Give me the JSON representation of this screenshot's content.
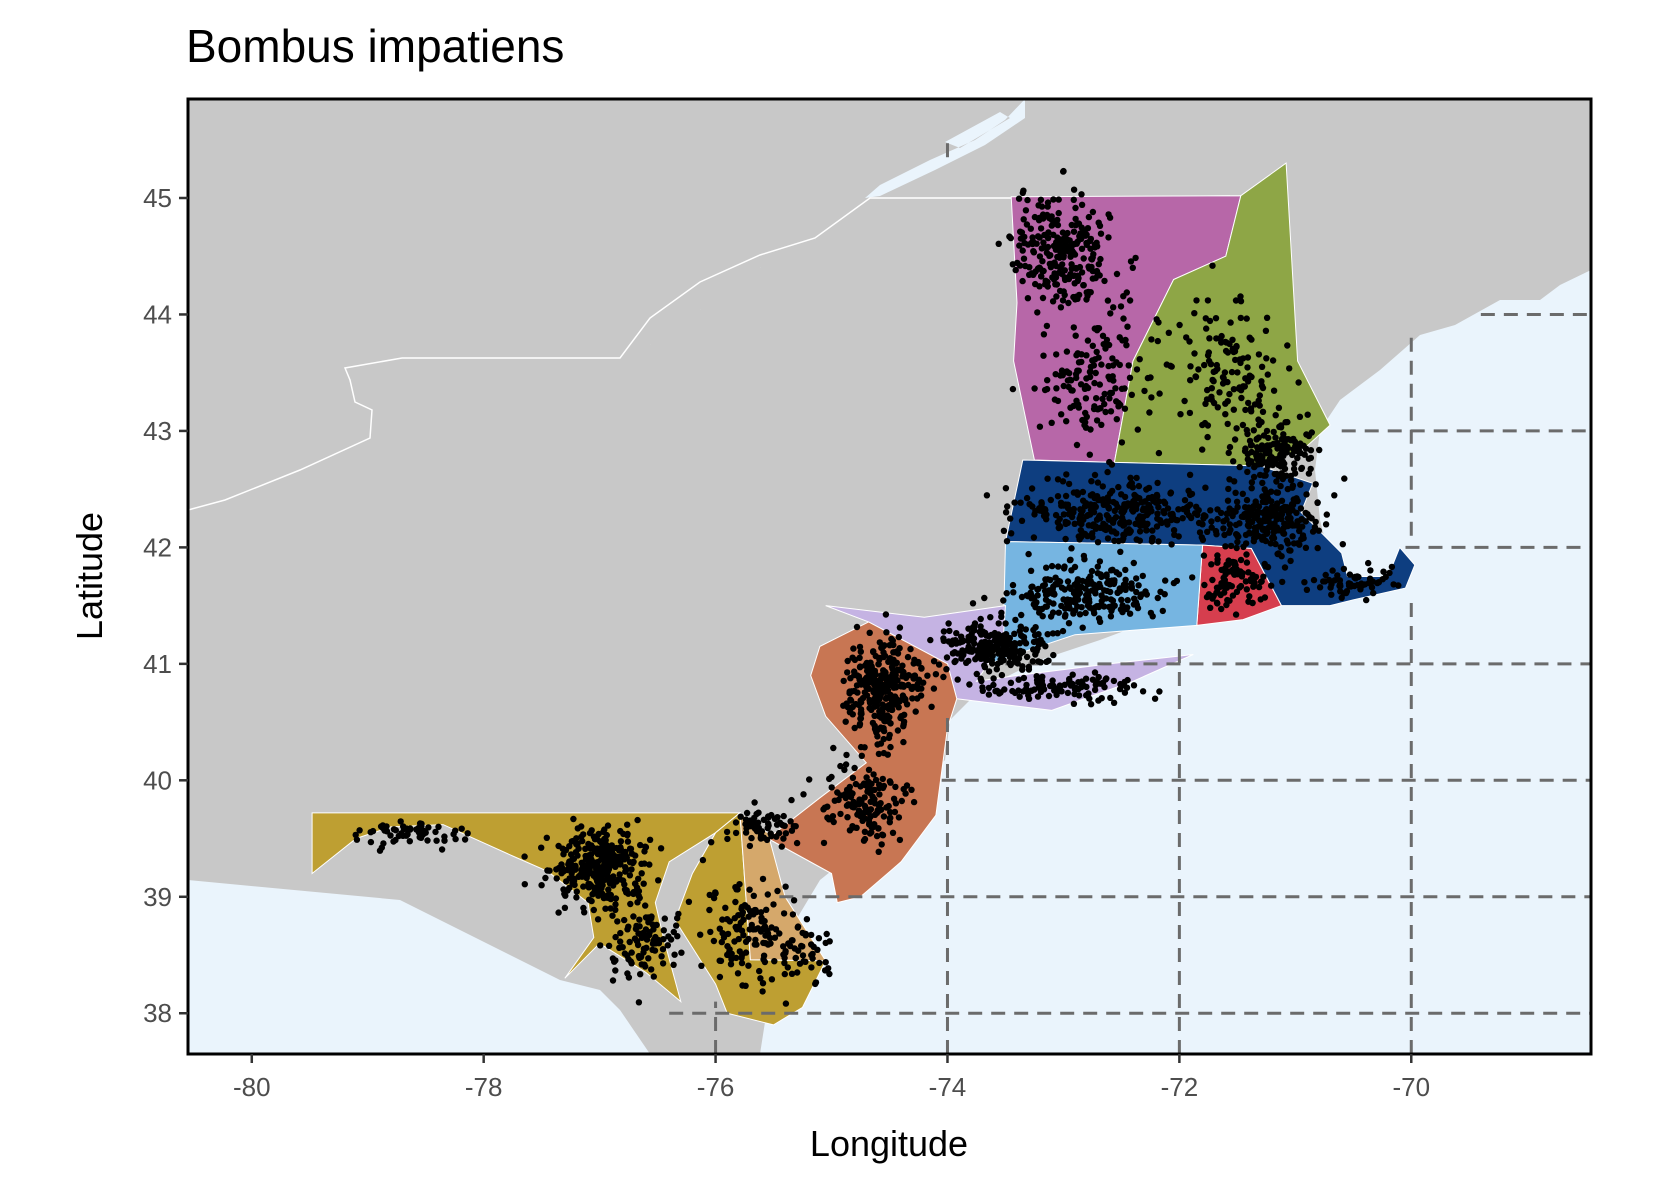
{
  "title": "Bombus impatiens",
  "axes": {
    "x_title": "Longitude",
    "y_title": "Latitude",
    "x_ticks": [
      "-80",
      "-78",
      "-76",
      "-74",
      "-72",
      "-70"
    ],
    "y_ticks": [
      "38",
      "39",
      "40",
      "41",
      "42",
      "43",
      "44",
      "45"
    ]
  },
  "chart_data": {
    "type": "scatter",
    "title": "Bombus impatiens",
    "xlabel": "Longitude",
    "ylabel": "Latitude",
    "xlim": [
      -80.55,
      -68.45
    ],
    "ylim": [
      37.65,
      45.85
    ],
    "x_tick_values": [
      -80,
      -78,
      -76,
      -74,
      -72,
      -70
    ],
    "y_tick_values": [
      38,
      39,
      40,
      41,
      42,
      43,
      44,
      45
    ],
    "grid": "dashed lines over ocean at whole-degree longitude and latitude",
    "legend": "none",
    "colors": {
      "land": "#c8c8c8",
      "water": "#eaf4fc",
      "border": "#ffffff",
      "grid": "#6b6b6b",
      "points": "#000000",
      "frame": "#000000"
    },
    "regions": [
      {
        "color": "#b767a8",
        "polygon": [
          [
            -73.45,
            45.01
          ],
          [
            -71.47,
            45.02
          ],
          [
            -71.6,
            44.5
          ],
          [
            -72.05,
            44.3
          ],
          [
            -72.4,
            43.6
          ],
          [
            -72.56,
            42.73
          ],
          [
            -73.25,
            42.75
          ],
          [
            -73.43,
            43.6
          ],
          [
            -73.4,
            44.1
          ],
          [
            -73.45,
            45.01
          ]
        ]
      },
      {
        "color": "#8ea646",
        "polygon": [
          [
            -71.47,
            45.02
          ],
          [
            -71.6,
            44.5
          ],
          [
            -72.05,
            44.3
          ],
          [
            -72.4,
            43.6
          ],
          [
            -72.56,
            42.73
          ],
          [
            -71.3,
            42.7
          ],
          [
            -70.9,
            42.87
          ],
          [
            -70.7,
            43.05
          ],
          [
            -70.98,
            43.6
          ],
          [
            -71.08,
            45.3
          ],
          [
            -71.47,
            45.02
          ]
        ]
      },
      {
        "color": "#0e3e80",
        "polygon": [
          [
            -73.5,
            42.05
          ],
          [
            -73.35,
            42.75
          ],
          [
            -72.56,
            42.73
          ],
          [
            -71.3,
            42.7
          ],
          [
            -70.85,
            42.55
          ],
          [
            -70.95,
            42.3
          ],
          [
            -70.6,
            41.95
          ],
          [
            -70.55,
            41.75
          ],
          [
            -70.2,
            41.75
          ],
          [
            -70.1,
            42.0
          ],
          [
            -69.97,
            41.85
          ],
          [
            -70.05,
            41.65
          ],
          [
            -70.5,
            41.55
          ],
          [
            -70.7,
            41.5
          ],
          [
            -71.12,
            41.5
          ],
          [
            -71.38,
            41.99
          ],
          [
            -71.8,
            42.02
          ],
          [
            -73.5,
            42.05
          ]
        ]
      },
      {
        "color": "#d63e4e",
        "polygon": [
          [
            -71.8,
            42.02
          ],
          [
            -71.38,
            41.99
          ],
          [
            -71.12,
            41.5
          ],
          [
            -71.45,
            41.38
          ],
          [
            -71.85,
            41.33
          ],
          [
            -71.8,
            42.02
          ]
        ]
      },
      {
        "color": "#76b5e1",
        "polygon": [
          [
            -73.5,
            42.05
          ],
          [
            -71.8,
            42.02
          ],
          [
            -71.85,
            41.33
          ],
          [
            -72.9,
            41.25
          ],
          [
            -73.65,
            41.0
          ],
          [
            -73.52,
            41.2
          ],
          [
            -73.5,
            42.05
          ]
        ]
      },
      {
        "color": "#c5b3e3",
        "polygon": [
          [
            -75.05,
            41.5
          ],
          [
            -74.68,
            41.36
          ],
          [
            -74.0,
            41.0
          ],
          [
            -73.92,
            40.7
          ],
          [
            -73.1,
            40.6
          ],
          [
            -72.4,
            40.85
          ],
          [
            -71.88,
            41.08
          ],
          [
            -72.6,
            41.0
          ],
          [
            -73.4,
            40.9
          ],
          [
            -73.75,
            40.85
          ],
          [
            -73.65,
            41.0
          ],
          [
            -73.52,
            41.2
          ],
          [
            -73.5,
            41.5
          ],
          [
            -74.2,
            41.4
          ],
          [
            -75.05,
            41.5
          ]
        ]
      },
      {
        "color": "#c87653",
        "polygon": [
          [
            -74.68,
            41.36
          ],
          [
            -74.0,
            41.0
          ],
          [
            -73.92,
            40.7
          ],
          [
            -74.0,
            40.45
          ],
          [
            -74.1,
            39.7
          ],
          [
            -74.4,
            39.3
          ],
          [
            -74.75,
            39.0
          ],
          [
            -74.95,
            38.95
          ],
          [
            -75.0,
            39.2
          ],
          [
            -75.55,
            39.5
          ],
          [
            -75.1,
            39.85
          ],
          [
            -74.7,
            40.15
          ],
          [
            -75.05,
            40.55
          ],
          [
            -75.18,
            40.9
          ],
          [
            -75.1,
            41.15
          ],
          [
            -74.68,
            41.36
          ]
        ]
      },
      {
        "color": "#be9f32",
        "polygon": [
          [
            -79.48,
            39.72
          ],
          [
            -75.79,
            39.72
          ],
          [
            -76.0,
            39.55
          ],
          [
            -76.4,
            39.3
          ],
          [
            -76.52,
            38.95
          ],
          [
            -76.45,
            38.65
          ],
          [
            -76.3,
            38.1
          ],
          [
            -76.6,
            38.35
          ],
          [
            -77.0,
            38.6
          ],
          [
            -77.2,
            38.4
          ],
          [
            -77.3,
            38.3
          ],
          [
            -77.05,
            38.65
          ],
          [
            -77.1,
            38.95
          ],
          [
            -77.45,
            39.22
          ],
          [
            -77.75,
            39.35
          ],
          [
            -78.35,
            39.62
          ],
          [
            -78.8,
            39.6
          ],
          [
            -79.1,
            39.5
          ],
          [
            -79.48,
            39.2
          ],
          [
            -79.48,
            39.72
          ]
        ]
      },
      {
        "color": "#be9f32",
        "polygon": [
          [
            -75.79,
            39.72
          ],
          [
            -75.7,
            38.46
          ],
          [
            -75.05,
            38.45
          ],
          [
            -75.25,
            38.05
          ],
          [
            -75.5,
            37.9
          ],
          [
            -75.9,
            38.0
          ],
          [
            -76.0,
            38.25
          ],
          [
            -76.35,
            38.8
          ],
          [
            -76.2,
            39.2
          ],
          [
            -76.0,
            39.55
          ],
          [
            -75.79,
            39.72
          ]
        ]
      },
      {
        "color": "#d5a86b",
        "polygon": [
          [
            -75.79,
            39.72
          ],
          [
            -75.55,
            39.55
          ],
          [
            -75.4,
            39.0
          ],
          [
            -75.05,
            38.45
          ],
          [
            -75.7,
            38.46
          ],
          [
            -75.79,
            39.72
          ]
        ]
      }
    ],
    "grid_lines": [
      {
        "orientation": "h",
        "y": 38,
        "x_from": -76.4,
        "x_to": -68.45
      },
      {
        "orientation": "h",
        "y": 39,
        "x_from": -75.45,
        "x_to": -68.45
      },
      {
        "orientation": "h",
        "y": 40,
        "x_from": -74.05,
        "x_to": -68.45
      },
      {
        "orientation": "h",
        "y": 41,
        "x_from": -73.5,
        "x_to": -68.45
      },
      {
        "orientation": "h",
        "y": 42,
        "x_from": -70.05,
        "x_to": -68.45
      },
      {
        "orientation": "h",
        "y": 43,
        "x_from": -70.6,
        "x_to": -68.45
      },
      {
        "orientation": "h",
        "y": 44,
        "x_from": -69.4,
        "x_to": -68.45
      },
      {
        "orientation": "v",
        "x": -76,
        "y_from": 37.65,
        "y_to": 38.1
      },
      {
        "orientation": "v",
        "x": -74,
        "y_from": 37.65,
        "y_to": 40.55
      },
      {
        "orientation": "v",
        "x": -72,
        "y_from": 37.65,
        "y_to": 41.2
      },
      {
        "orientation": "v",
        "x": -70,
        "y_from": 37.65,
        "y_to": 41.6
      },
      {
        "orientation": "v",
        "x": -70,
        "y_from": 42.1,
        "y_to": 43.85
      },
      {
        "orientation": "v",
        "x": -74,
        "y_from": 45.35,
        "y_to": 45.5
      }
    ],
    "point_clusters": [
      {
        "center": [
          -73.0,
          44.55
        ],
        "spread": [
          0.35,
          0.42
        ],
        "count": 260
      },
      {
        "center": [
          -72.7,
          43.4
        ],
        "spread": [
          0.4,
          0.45
        ],
        "count": 150
      },
      {
        "center": [
          -71.6,
          43.5
        ],
        "spread": [
          0.4,
          0.55
        ],
        "count": 140
      },
      {
        "center": [
          -71.15,
          42.8
        ],
        "spread": [
          0.28,
          0.22
        ],
        "count": 140
      },
      {
        "center": [
          -72.5,
          42.3
        ],
        "spread": [
          0.7,
          0.22
        ],
        "count": 320
      },
      {
        "center": [
          -71.2,
          42.25
        ],
        "spread": [
          0.35,
          0.25
        ],
        "count": 220
      },
      {
        "center": [
          -72.8,
          41.6
        ],
        "spread": [
          0.5,
          0.22
        ],
        "count": 230
      },
      {
        "center": [
          -71.5,
          41.7
        ],
        "spread": [
          0.25,
          0.2
        ],
        "count": 90
      },
      {
        "center": [
          -70.5,
          41.7
        ],
        "spread": [
          0.3,
          0.1
        ],
        "count": 60
      },
      {
        "center": [
          -73.6,
          41.15
        ],
        "spread": [
          0.4,
          0.18
        ],
        "count": 220
      },
      {
        "center": [
          -73.0,
          40.8
        ],
        "spread": [
          0.6,
          0.1
        ],
        "count": 110
      },
      {
        "center": [
          -74.55,
          40.8
        ],
        "spread": [
          0.25,
          0.35
        ],
        "count": 320
      },
      {
        "center": [
          -74.7,
          39.8
        ],
        "spread": [
          0.28,
          0.3
        ],
        "count": 140
      },
      {
        "center": [
          -75.6,
          39.6
        ],
        "spread": [
          0.25,
          0.15
        ],
        "count": 60
      },
      {
        "center": [
          -77.0,
          39.25
        ],
        "spread": [
          0.32,
          0.28
        ],
        "count": 300
      },
      {
        "center": [
          -78.7,
          39.55
        ],
        "spread": [
          0.4,
          0.1
        ],
        "count": 60
      },
      {
        "center": [
          -76.6,
          38.6
        ],
        "spread": [
          0.3,
          0.3
        ],
        "count": 100
      },
      {
        "center": [
          -75.7,
          38.7
        ],
        "spread": [
          0.3,
          0.35
        ],
        "count": 130
      },
      {
        "center": [
          -75.2,
          38.5
        ],
        "spread": [
          0.2,
          0.2
        ],
        "count": 40
      }
    ]
  }
}
